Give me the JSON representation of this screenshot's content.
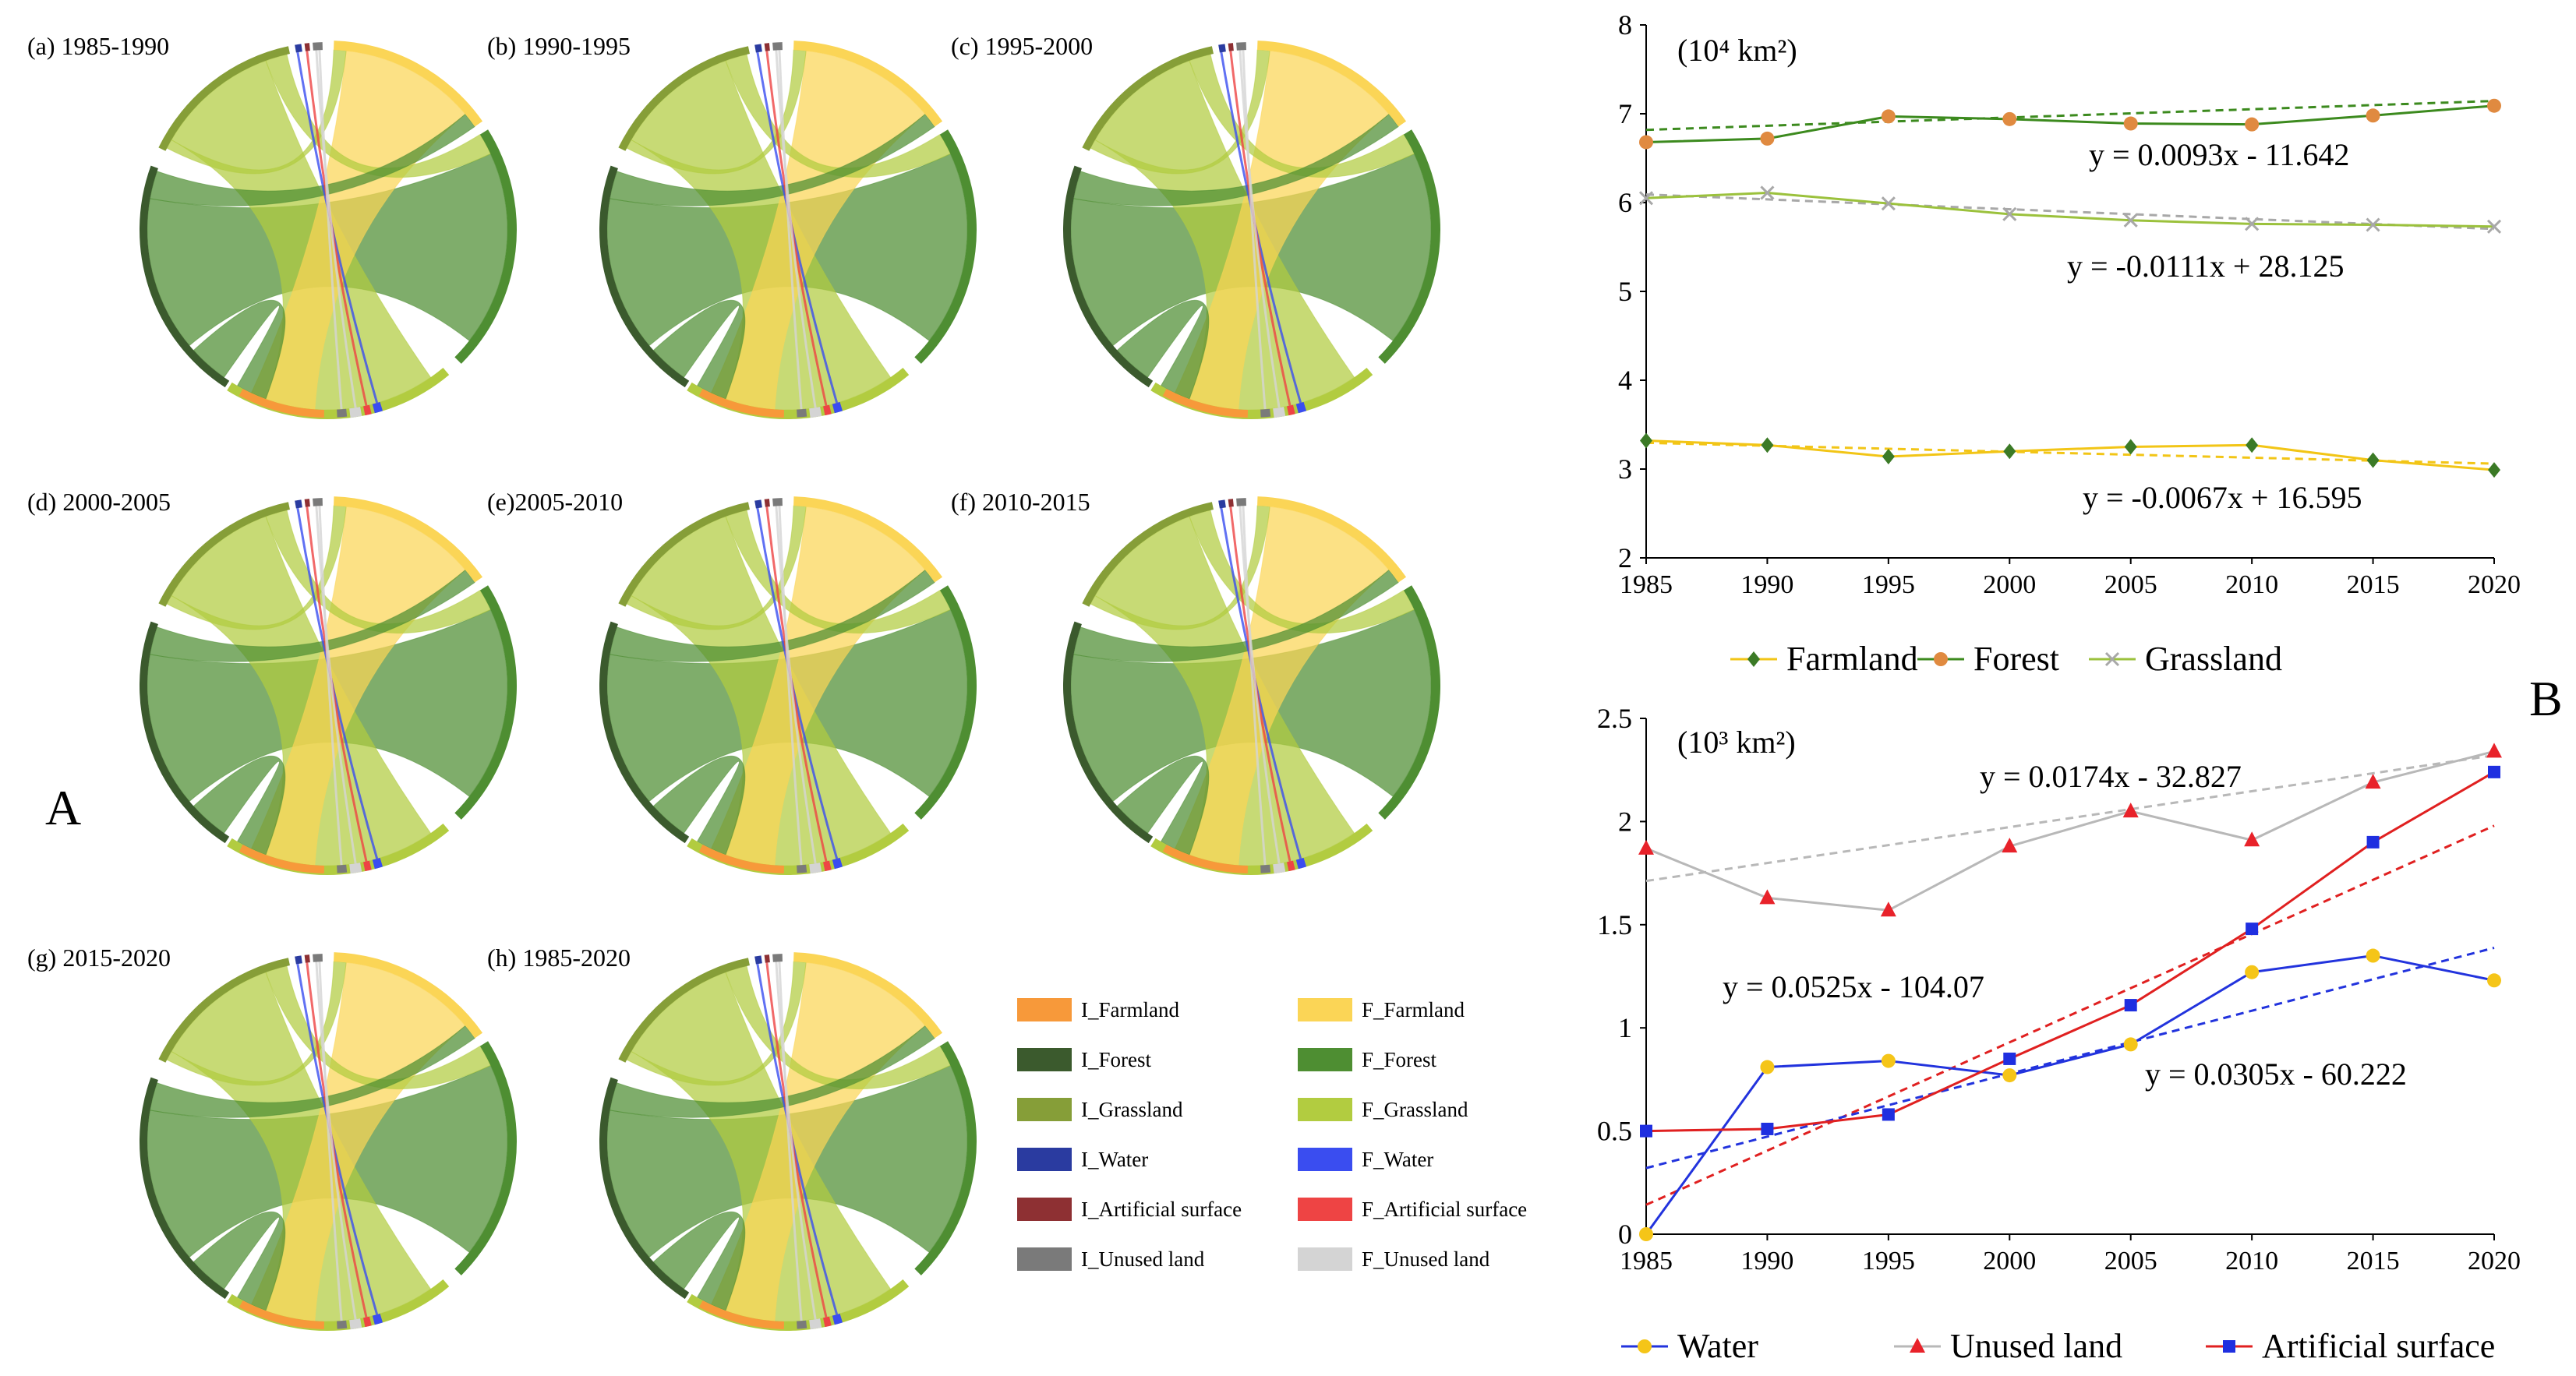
{
  "panel_letters": {
    "a": "A",
    "b": "B"
  },
  "colors": {
    "I_Farmland": "#F7993A",
    "F_Farmland": "#FBD556",
    "I_Forest": "#3B5A2D",
    "F_Forest": "#4E8E32",
    "I_Grassland": "#869E38",
    "F_Grassland": "#B2CC40",
    "I_Water": "#2A3BA0",
    "F_Water": "#3A4DF0",
    "I_Artificial": "#8E3033",
    "F_Artificial": "#EE4444",
    "I_Unused": "#7A7A7A",
    "F_Unused": "#D4D4D4"
  },
  "legend": [
    {
      "label": "I_Farmland",
      "color": "#F7993A"
    },
    {
      "label": "F_Farmland",
      "color": "#FBD556"
    },
    {
      "label": "I_Forest",
      "color": "#3B5A2D"
    },
    {
      "label": "F_Forest",
      "color": "#4E8E32"
    },
    {
      "label": "I_Grassland",
      "color": "#869E38"
    },
    {
      "label": "F_Grassland",
      "color": "#B2CC40"
    },
    {
      "label": "I_Water",
      "color": "#2A3BA0"
    },
    {
      "label": "F_Water",
      "color": "#3A4DF0"
    },
    {
      "label": "I_Artificial surface",
      "color": "#8E3033"
    },
    {
      "label": "F_Artificial surface",
      "color": "#EE4444"
    },
    {
      "label": "I_Unused land",
      "color": "#7A7A7A"
    },
    {
      "label": "F_Unused land",
      "color": "#D4D4D4"
    }
  ],
  "chart_data": [
    {
      "type": "chord",
      "panels": [
        {
          "label": "(a) 1985-1990"
        },
        {
          "label": "(b) 1990-1995"
        },
        {
          "label": "(c) 1995-2000"
        },
        {
          "label": "(d) 2000-2005"
        },
        {
          "label": "(e)2005-2010"
        },
        {
          "label": "(f) 2010-2015"
        },
        {
          "label": "(g) 2015-2020"
        },
        {
          "label": "(h) 1985-2020"
        }
      ]
    },
    {
      "type": "line",
      "unit_label": "(10⁴ km²)",
      "x": [
        1985,
        1990,
        1995,
        2000,
        2005,
        2010,
        2015,
        2020
      ],
      "xlim": [
        1985,
        2020
      ],
      "ylim": [
        2,
        8
      ],
      "yticks": [
        2,
        3,
        4,
        5,
        6,
        7,
        8
      ],
      "series": [
        {
          "name": "Farmland",
          "color": "#F2C516",
          "marker_color": "#3B7A26",
          "marker": "diamond",
          "values": [
            3.32,
            3.27,
            3.14,
            3.2,
            3.25,
            3.27,
            3.1,
            2.99
          ]
        },
        {
          "name": "Forest",
          "color": "#3C8A1E",
          "marker_color": "#E08A40",
          "marker": "circle",
          "values": [
            6.68,
            6.72,
            6.97,
            6.94,
            6.89,
            6.88,
            6.98,
            7.09
          ]
        },
        {
          "name": "Grassland",
          "color": "#9BC13C",
          "marker_color": "#A8A8A8",
          "marker": "cross",
          "values": [
            6.05,
            6.11,
            5.99,
            5.87,
            5.8,
            5.76,
            5.75,
            5.73
          ]
        }
      ],
      "trendlines": [
        {
          "series": "Forest",
          "equation": "y = 0.0093x - 11.642",
          "slope": 0.0093,
          "intercept": -11.642,
          "color": "#3C8A1E"
        },
        {
          "series": "Grassland",
          "equation": "y = -0.0111x + 28.125",
          "slope": -0.0111,
          "intercept": 28.125,
          "color": "#A8A8A8"
        },
        {
          "series": "Farmland",
          "equation": "y = -0.0067x + 16.595",
          "slope": -0.0067,
          "intercept": 16.595,
          "color": "#F2C516"
        }
      ]
    },
    {
      "type": "line",
      "unit_label": "(10³ km²)",
      "x": [
        1985,
        1990,
        1995,
        2000,
        2005,
        2010,
        2015,
        2020
      ],
      "xlim": [
        1985,
        2020
      ],
      "ylim": [
        0,
        2.5
      ],
      "yticks": [
        0,
        0.5,
        1,
        1.5,
        2,
        2.5
      ],
      "series": [
        {
          "name": "Water",
          "color": "#2233DD",
          "marker_color": "#F5C518",
          "marker": "circle",
          "values": [
            0.0,
            0.81,
            0.84,
            0.77,
            0.92,
            1.27,
            1.35,
            1.23
          ]
        },
        {
          "name": "Unused land",
          "color": "#B8B8B8",
          "marker_color": "#E8222A",
          "marker": "triangle",
          "values": [
            1.87,
            1.63,
            1.57,
            1.88,
            2.05,
            1.91,
            2.19,
            2.34
          ]
        },
        {
          "name": "Artificial surface",
          "color": "#E02020",
          "marker_color": "#1F2FE0",
          "marker": "square",
          "values": [
            0.5,
            0.51,
            0.58,
            0.85,
            1.11,
            1.48,
            1.9,
            2.24
          ]
        }
      ],
      "trendlines": [
        {
          "series": "Unused land",
          "equation": "y = 0.0174x - 32.827",
          "slope": 0.0174,
          "intercept": -32.827,
          "color": "#B8B8B8"
        },
        {
          "series": "Artificial surface",
          "equation": "y = 0.0525x - 104.07",
          "slope": 0.0525,
          "intercept": -104.07,
          "color": "#E02020"
        },
        {
          "series": "Water",
          "equation": "y = 0.0305x - 60.222",
          "slope": 0.0305,
          "intercept": -60.222,
          "color": "#2233DD"
        }
      ]
    }
  ]
}
